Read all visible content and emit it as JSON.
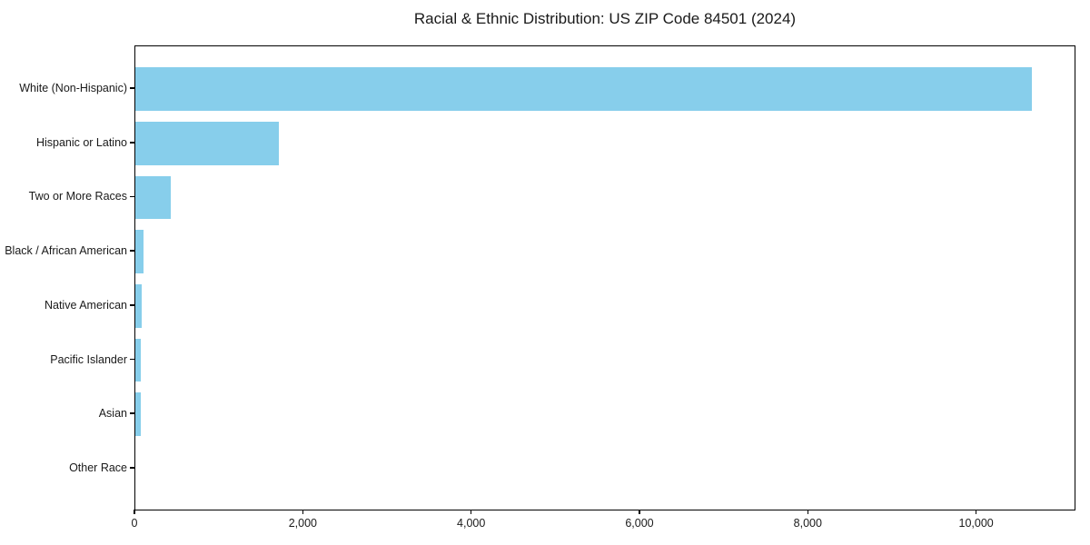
{
  "chart_data": {
    "type": "bar",
    "orientation": "horizontal",
    "title": "Racial & Ethnic Distribution: US ZIP Code 84501 (2024)",
    "categories": [
      "White (Non-Hispanic)",
      "Hispanic or Latino",
      "Two or More Races",
      "Black / African American",
      "Native American",
      "Pacific Islander",
      "Asian",
      "Other Race"
    ],
    "values": [
      10650,
      1700,
      420,
      100,
      75,
      70,
      60,
      0
    ],
    "xlabel": "",
    "ylabel": "",
    "xlim": [
      0,
      11180
    ],
    "x_ticks": [
      0,
      2000,
      4000,
      6000,
      8000,
      10000
    ],
    "x_tick_labels": [
      "0",
      "2,000",
      "4,000",
      "6,000",
      "8,000",
      "10,000"
    ],
    "bar_color": "#87CEEB",
    "axis_color": "#000000",
    "text_color": "#1a1a1a",
    "grid": false,
    "legend": false
  }
}
